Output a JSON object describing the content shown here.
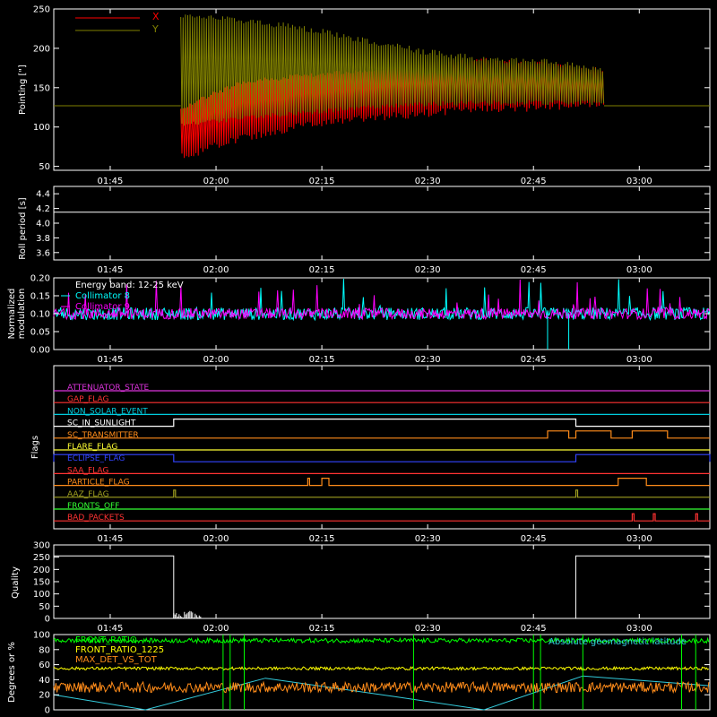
{
  "time_ticks": [
    "01:45",
    "02:00",
    "02:15",
    "02:30",
    "02:45",
    "03:00"
  ],
  "colors": {
    "x_series": "#ff0000",
    "y_series": "#808000",
    "collimator_a": "#ff00ff",
    "collimator_b": "#00ffff",
    "front_ratio": "#00ff00",
    "front_ratio_1225": "#ffff00",
    "max_det": "#ff8c1a",
    "geomag": "#33ccdd",
    "axis": "#ffffff"
  },
  "chart_data": [
    {
      "type": "line",
      "ylabel": "Pointing [\"]",
      "ylim": [
        45,
        250
      ],
      "yticks": [
        "50",
        "100",
        "150",
        "200",
        "250"
      ],
      "legend": [
        "X",
        "Y"
      ],
      "reference_line": 127,
      "activity_window": [
        "01:55",
        "02:55"
      ],
      "series": [
        {
          "name": "X",
          "envelope_top": [
            127,
            160,
            168,
            175,
            183,
            188,
            183,
            175
          ],
          "envelope_bottom": [
            57,
            80,
            96,
            106,
            112,
            118,
            120,
            124
          ]
        },
        {
          "name": "Y",
          "envelope_top": [
            245,
            240,
            230,
            215,
            200,
            190,
            187,
            178
          ],
          "envelope_bottom": [
            100,
            108,
            115,
            122,
            126,
            128,
            128,
            128
          ]
        }
      ]
    },
    {
      "type": "line",
      "ylabel": "Roll period [s]",
      "ylim": [
        3.5,
        4.5
      ],
      "yticks": [
        "3.6",
        "3.8",
        "4.0",
        "4.2",
        "4.4"
      ],
      "series": [
        {
          "name": "",
          "values": [
            4.15,
            4.15
          ]
        }
      ]
    },
    {
      "type": "line",
      "ylabel": "Normalized modulation",
      "ylim": [
        0,
        0.2
      ],
      "yticks": [
        "0.00",
        "0.05",
        "0.10",
        "0.15",
        "0.20"
      ],
      "annotation": "Energy band: 12-25 keV",
      "legend": [
        "Collimator 8",
        "Collimator 9"
      ],
      "baseline": 0.1
    },
    {
      "type": "table",
      "ylabel": "Flags",
      "flags": [
        {
          "name": "ATTENUATOR_STATE",
          "color": "#dd33dd",
          "on": []
        },
        {
          "name": "GAP_FLAG",
          "color": "#ff3333",
          "on": []
        },
        {
          "name": "NON_SOLAR_EVENT",
          "color": "#00ccdd",
          "on": []
        },
        {
          "name": "SC_IN_SUNLIGHT",
          "color": "#ffffff",
          "on": [
            [
              "01:54",
              "02:51"
            ]
          ]
        },
        {
          "name": "SC_TRANSMITTER",
          "color": "#ff8c1a",
          "on": [
            [
              "02:47",
              "02:50"
            ],
            [
              "02:51",
              "02:56"
            ],
            [
              "02:59",
              "03:04"
            ]
          ]
        },
        {
          "name": "FLARE_FLAG",
          "color": "#ffff33",
          "on": []
        },
        {
          "name": "ECLIPSE_FLAG",
          "color": "#3344ff",
          "on": [
            [
              "01:37",
              "01:54"
            ],
            [
              "02:51",
              "03:10"
            ]
          ]
        },
        {
          "name": "SAA_FLAG",
          "color": "#ff3333",
          "on": []
        },
        {
          "name": "PARTICLE_FLAG",
          "color": "#ff8c1a",
          "on": [
            [
              "02:13",
              "02:13"
            ],
            [
              "02:15",
              "02:16"
            ],
            [
              "02:57",
              "03:01"
            ]
          ]
        },
        {
          "name": "AAZ_FLAG",
          "color": "#a0a020",
          "on": [
            [
              "01:54",
              "01:54"
            ],
            [
              "02:51",
              "02:51"
            ]
          ]
        },
        {
          "name": "FRONTS_OFF",
          "color": "#33ff33",
          "on": []
        },
        {
          "name": "BAD_PACKETS",
          "color": "#ff3333",
          "on": [
            [
              "02:59",
              "02:59"
            ],
            [
              "03:02",
              "03:02"
            ],
            [
              "03:08",
              "03:08"
            ]
          ]
        }
      ]
    },
    {
      "type": "line",
      "ylabel": "Quality",
      "ylim": [
        0,
        300
      ],
      "yticks": [
        "0",
        "50",
        "100",
        "150",
        "200",
        "250",
        "300"
      ],
      "series": [
        {
          "name": "",
          "segments": [
            [
              "01:37",
              "01:54",
              255
            ],
            [
              "02:51",
              "03:10",
              255
            ]
          ]
        }
      ]
    },
    {
      "type": "line",
      "ylabel": "Degrees or %",
      "ylim": [
        0,
        100
      ],
      "yticks": [
        "0",
        "20",
        "40",
        "60",
        "80",
        "100"
      ],
      "legend": [
        "FRONT_RATIO",
        "FRONT_RATIO_1225",
        "MAX_DET_VS_TOT"
      ],
      "annotation": "Absolute geomagnetic latitude",
      "series": [
        {
          "name": "FRONT_RATIO",
          "level": 92
        },
        {
          "name": "FRONT_RATIO_1225",
          "level": 55
        },
        {
          "name": "MAX_DET_VS_TOT",
          "level": 30
        }
      ]
    }
  ]
}
